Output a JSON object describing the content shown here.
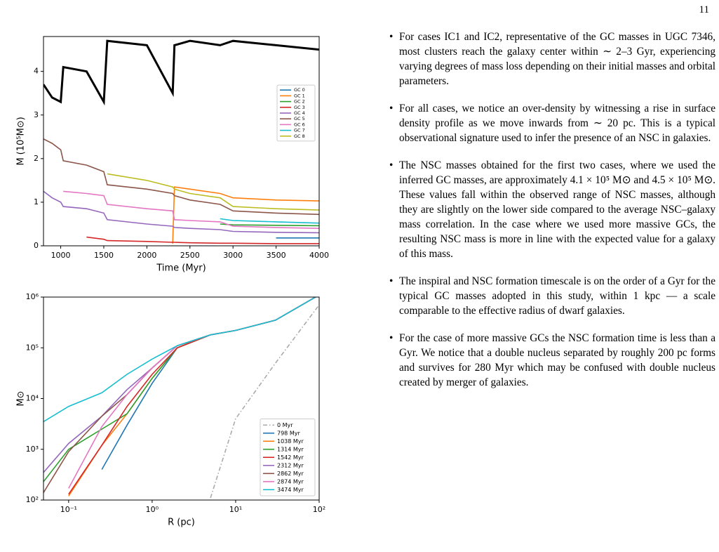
{
  "page_number": "11",
  "chart_data": [
    {
      "type": "line",
      "xlabel": "Time (Myr)",
      "ylabel": "M (10⁵M⊙)",
      "x": [
        800,
        900,
        1000,
        1030,
        1300,
        1500,
        1540,
        2000,
        2300,
        2320,
        2500,
        2850,
        3000,
        3500,
        4000
      ],
      "xlim": [
        800,
        4000
      ],
      "xticks": [
        1000,
        1500,
        2000,
        2500,
        3000,
        3500,
        4000
      ],
      "ylim": [
        0,
        4.8
      ],
      "yticks": [
        0,
        1,
        2,
        3,
        4
      ],
      "legend": "center right",
      "series": [
        {
          "color": "#000000",
          "width": 3,
          "values": [
            3.7,
            3.4,
            3.3,
            4.1,
            4.0,
            3.3,
            4.7,
            4.6,
            3.5,
            4.6,
            4.7,
            4.6,
            4.7,
            4.6,
            4.5
          ]
        },
        {
          "name": "GC 0",
          "color": "#1f77b4",
          "values": [
            null,
            null,
            null,
            null,
            null,
            null,
            null,
            null,
            null,
            null,
            null,
            null,
            null,
            0.18,
            0.18
          ]
        },
        {
          "name": "GC 1",
          "color": "#ff7f0e",
          "values": [
            null,
            null,
            null,
            null,
            null,
            null,
            null,
            null,
            0.05,
            1.35,
            1.3,
            1.2,
            1.1,
            1.05,
            1.03
          ]
        },
        {
          "name": "GC 2",
          "color": "#2ca02c",
          "values": [
            null,
            null,
            null,
            null,
            null,
            null,
            null,
            null,
            null,
            null,
            null,
            0.5,
            0.48,
            0.47,
            0.46
          ]
        },
        {
          "name": "GC 3",
          "color": "#d62728",
          "values": [
            null,
            null,
            null,
            null,
            0.2,
            0.15,
            0.12,
            0.1,
            0.08,
            0.08,
            0.07,
            0.06,
            0.06,
            0.05,
            0.05
          ]
        },
        {
          "name": "GC 4",
          "color": "#9467bd",
          "values": [
            1.25,
            1.1,
            1.0,
            0.9,
            0.85,
            0.75,
            0.6,
            0.5,
            0.45,
            0.42,
            0.4,
            0.37,
            0.33,
            0.31,
            0.3
          ]
        },
        {
          "name": "GC 5",
          "color": "#8c564b",
          "values": [
            2.45,
            2.35,
            2.2,
            1.95,
            1.85,
            1.7,
            1.4,
            1.3,
            1.2,
            1.15,
            1.05,
            0.95,
            0.8,
            0.75,
            0.72
          ]
        },
        {
          "name": "GC 6",
          "color": "#e377c2",
          "values": [
            null,
            null,
            null,
            1.25,
            1.2,
            1.15,
            0.95,
            0.85,
            0.8,
            0.6,
            0.58,
            0.55,
            0.45,
            0.42,
            0.4
          ]
        },
        {
          "name": "GC 7",
          "color": "#17becf",
          "values": [
            null,
            null,
            null,
            null,
            null,
            null,
            null,
            null,
            null,
            null,
            null,
            0.62,
            0.58,
            0.55,
            0.52
          ]
        },
        {
          "name": "GC 8",
          "color": "#bcbd22",
          "values": [
            null,
            null,
            null,
            null,
            null,
            null,
            1.65,
            1.5,
            1.35,
            1.3,
            1.2,
            1.1,
            0.9,
            0.85,
            0.82
          ]
        }
      ]
    },
    {
      "type": "line",
      "xlabel": "R (pc)",
      "ylabel": "M⊙",
      "xscale": "log",
      "yscale": "log",
      "x": [
        0.05,
        0.1,
        0.25,
        0.5,
        1,
        2,
        5,
        10,
        30,
        100
      ],
      "xlim": [
        0.05,
        100
      ],
      "xticks": [
        {
          "value": 0.1,
          "label": "10⁻¹"
        },
        {
          "value": 1,
          "label": "10⁰"
        },
        {
          "value": 10,
          "label": "10¹"
        },
        {
          "value": 100,
          "label": "10²"
        }
      ],
      "ylim": [
        100,
        1000000
      ],
      "yticks": [
        {
          "value": 100,
          "label": "10²"
        },
        {
          "value": 1000,
          "label": "10³"
        },
        {
          "value": 10000,
          "label": "10⁴"
        },
        {
          "value": 100000,
          "label": "10⁵"
        },
        {
          "value": 1000000,
          "label": "10⁶"
        }
      ],
      "legend": "lower right",
      "series": [
        {
          "name": "0 Myr",
          "color": "#aaaaaa",
          "linestyle": "dashdot",
          "values": [
            null,
            null,
            null,
            null,
            null,
            null,
            110,
            4000,
            50000,
            700000
          ]
        },
        {
          "name": "798 Myr",
          "color": "#1f77b4",
          "values": [
            null,
            null,
            400,
            3000,
            20000,
            100000,
            180000,
            220000,
            350000,
            1100000
          ]
        },
        {
          "name": "1038 Myr",
          "color": "#ff7f0e",
          "values": [
            null,
            120,
            1200,
            5000,
            25000,
            100000,
            180000,
            220000,
            350000,
            1100000
          ]
        },
        {
          "name": "1314 Myr",
          "color": "#2ca02c",
          "values": [
            230,
            1000,
            2500,
            5000,
            25000,
            100000,
            180000,
            220000,
            350000,
            1100000
          ]
        },
        {
          "name": "1542 Myr",
          "color": "#d62728",
          "values": [
            null,
            130,
            1200,
            7000,
            30000,
            100000,
            180000,
            220000,
            350000,
            1100000
          ]
        },
        {
          "name": "2312 Myr",
          "color": "#9467bd",
          "values": [
            350,
            1300,
            4500,
            15000,
            40000,
            110000,
            180000,
            220000,
            350000,
            1100000
          ]
        },
        {
          "name": "2862 Myr",
          "color": "#8c564b",
          "values": [
            140,
            900,
            4500,
            12000,
            40000,
            110000,
            180000,
            220000,
            350000,
            1100000
          ]
        },
        {
          "name": "2874 Myr",
          "color": "#e377c2",
          "values": [
            null,
            170,
            2800,
            12000,
            40000,
            110000,
            180000,
            220000,
            350000,
            1100000
          ]
        },
        {
          "name": "3474 Myr",
          "color": "#17becf",
          "values": [
            3500,
            7000,
            13000,
            30000,
            60000,
            110000,
            180000,
            220000,
            350000,
            1100000
          ]
        }
      ]
    }
  ],
  "bullets": [
    "For cases IC1 and IC2, representative of the GC masses in UGC 7346, most clusters reach the galaxy center within ∼ 2–3 Gyr, experiencing varying degrees of mass loss depending on their initial masses and orbital parameters.",
    "For all cases, we notice an over-density by witnessing a rise in surface density profile as we move inwards from ∼ 20 pc. This is a typical observational signature used to infer the presence of an NSC in galaxies.",
    "The NSC masses obtained for the first two cases, where we used the inferred GC masses, are approximately 4.1 × 10⁵ M⊙ and 4.5 × 10⁵ M⊙. These values fall within the observed range of NSC masses, although they are slightly on the lower side compared to the average NSC–galaxy mass correlation. In the case where we used more massive GCs, the resulting NSC mass is more in line with the expected value for a galaxy of this mass.",
    "The inspiral and NSC formation timescale is on the order of a Gyr for the typical GC masses adopted in this study, within 1 kpc — a scale comparable to the effective radius of dwarf galaxies.",
    "For the case of more massive GCs the NSC formation time is less than a Gyr. We notice that a double nucleus separated by roughly 200 pc forms and survives for 280 Myr which may be confused with double nucleus created by merger of galaxies."
  ]
}
